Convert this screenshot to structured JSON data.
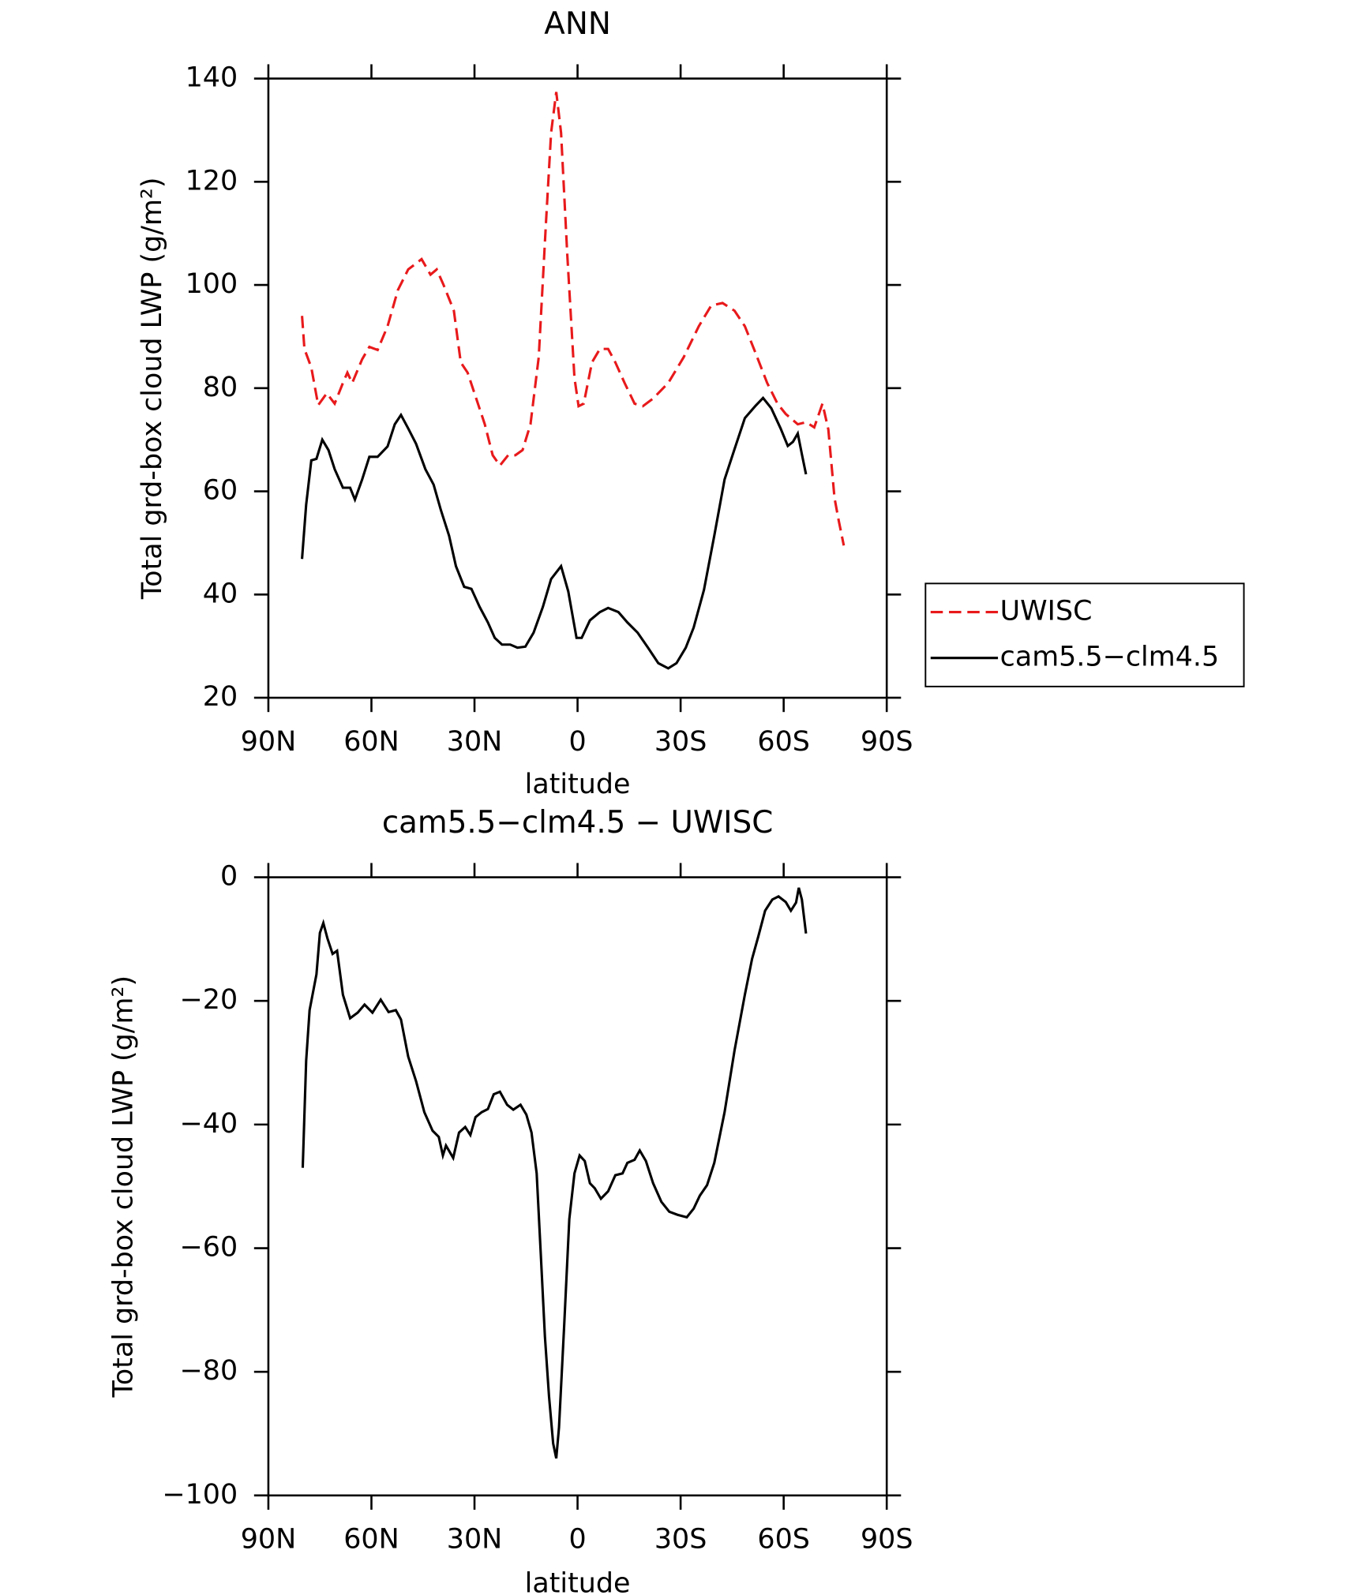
{
  "chart_data": [
    {
      "type": "line",
      "title": "ANN",
      "xlabel": "latitude",
      "ylabel": "Total grd-box cloud LWP (g/m²)",
      "xlim": [
        90,
        -90
      ],
      "xticks": [
        {
          "value": 90,
          "label": "90N"
        },
        {
          "value": 60,
          "label": "60N"
        },
        {
          "value": 30,
          "label": "30N"
        },
        0,
        {
          "value": -30,
          "label": "30S"
        },
        {
          "value": -60,
          "label": "60S"
        },
        {
          "value": -90,
          "label": "90S"
        }
      ],
      "ylim": [
        20,
        140
      ],
      "yticks": [
        20,
        40,
        60,
        80,
        100,
        120,
        140
      ],
      "legend": "outside-right",
      "series": [
        {
          "name": "UWISC",
          "color": "#e8191b",
          "dash": true,
          "x": [
            80.2,
            79.5,
            77.5,
            75.5,
            73,
            70.7,
            68.3,
            67,
            65.6,
            62.7,
            60.6,
            58.2,
            55.3,
            52.3,
            49.3,
            45.4,
            42.8,
            41,
            39,
            36,
            34,
            32,
            30,
            27,
            24.7,
            22.6,
            20.2,
            18.1,
            16,
            13.7,
            11.3,
            9.2,
            7.7,
            6.2,
            4.8,
            3,
            0.9,
            -0.3,
            -1.8,
            -4.2,
            -6.5,
            -8.9,
            -11,
            -13.7,
            -16.6,
            -19,
            -22,
            -26.4,
            -30.9,
            -35.3,
            -38.9,
            -42.2,
            -45.7,
            -48.7,
            -51.7,
            -55.2,
            -58.2,
            -60.6,
            -64.1,
            -66.5,
            -68.9,
            -71.3,
            -73,
            -74.8,
            -76,
            -77.5
          ],
          "values": [
            94,
            87.6,
            84,
            76.7,
            79,
            77,
            81,
            83,
            81,
            85.6,
            88,
            87.4,
            92,
            99,
            103,
            105,
            102,
            103,
            100,
            95,
            85,
            83,
            79,
            73,
            67,
            65,
            67,
            67,
            68,
            73,
            86,
            112,
            129.5,
            137.4,
            129.5,
            106,
            82,
            76.5,
            77,
            85,
            87.6,
            87.6,
            85,
            81,
            77,
            76.5,
            78,
            81,
            86,
            92,
            96,
            96.5,
            95,
            92,
            87,
            81,
            77,
            75,
            73,
            73.4,
            72.4,
            77,
            72,
            58.7,
            54.4,
            49.5
          ]
        },
        {
          "name": "cam5.5−clm4.5",
          "color": "#000000",
          "dash": false,
          "x": [
            80.2,
            79,
            77.5,
            76,
            74.3,
            72.5,
            70.7,
            68.3,
            66.2,
            64.8,
            62.7,
            60.6,
            58.2,
            55.3,
            53.2,
            51.4,
            49.3,
            47,
            44.3,
            41.9,
            39.8,
            37.4,
            35.4,
            33,
            30.9,
            28.5,
            26.1,
            24.1,
            22,
            19.6,
            17.5,
            15.2,
            12.8,
            10.1,
            7.7,
            4.8,
            2.7,
            0.3,
            -1.2,
            -3.6,
            -6.5,
            -8.9,
            -11.9,
            -14.5,
            -17.5,
            -20.5,
            -23.5,
            -26.4,
            -28.8,
            -31.5,
            -33.8,
            -36.8,
            -39.8,
            -42.8,
            -45.7,
            -48.7,
            -51.7,
            -54,
            -56.4,
            -59.1,
            -61.2,
            -62.7,
            -64.1,
            -65.3,
            -66.5
          ],
          "values": [
            46.9,
            57.4,
            66,
            66.3,
            70,
            68,
            64.3,
            60.7,
            60.7,
            58.4,
            62.3,
            66.7,
            66.7,
            68.7,
            73,
            74.8,
            72.2,
            69.2,
            64.3,
            61.3,
            56.4,
            51.4,
            45.5,
            41.5,
            41.1,
            37.6,
            34.6,
            31.6,
            30.3,
            30.3,
            29.7,
            29.9,
            32.6,
            37.6,
            43,
            45.5,
            40.6,
            31.6,
            31.6,
            35,
            36.6,
            37.4,
            36.6,
            34.6,
            32.6,
            29.7,
            26.7,
            25.7,
            26.7,
            29.7,
            33.6,
            40.9,
            51.4,
            62.3,
            68.2,
            74.2,
            76.5,
            78.1,
            76.1,
            72.2,
            68.8,
            69.6,
            71.2,
            67.2,
            63.3
          ]
        }
      ]
    },
    {
      "type": "line",
      "title": "cam5.5−clm4.5 − UWISC",
      "xlabel": "latitude",
      "ylabel": "Total grd-box cloud LWP (g/m²)",
      "xlim": [
        90,
        -90
      ],
      "xticks": [
        {
          "value": 90,
          "label": "90N"
        },
        {
          "value": 60,
          "label": "60N"
        },
        {
          "value": 30,
          "label": "30N"
        },
        0,
        {
          "value": -30,
          "label": "30S"
        },
        {
          "value": -60,
          "label": "60S"
        },
        {
          "value": -90,
          "label": "90S"
        }
      ],
      "ylim": [
        -100,
        0
      ],
      "yticks": [
        {
          "value": -100,
          "label": "−100"
        },
        {
          "value": -80,
          "label": "−80"
        },
        {
          "value": -60,
          "label": "−60"
        },
        {
          "value": -40,
          "label": "−40"
        },
        {
          "value": -20,
          "label": "−20"
        },
        0
      ],
      "color": "#000000",
      "x": [
        80,
        79,
        78,
        76,
        75,
        74,
        72.8,
        71.3,
        70,
        68.3,
        66.2,
        64,
        62,
        59.7,
        57.3,
        55,
        52.9,
        51.4,
        49.3,
        47,
        44.6,
        42.2,
        40.4,
        39.2,
        38.3,
        36.2,
        34.5,
        32.7,
        31.2,
        29.7,
        27.9,
        26.1,
        24.4,
        22.6,
        20.5,
        18.7,
        16.6,
        14.9,
        13.4,
        11.9,
        10.7,
        9.5,
        8.3,
        7.1,
        6.2,
        5.4,
        3.9,
        2.4,
        0.9,
        -0.6,
        -2.1,
        -3.6,
        -5,
        -6.8,
        -8.9,
        -11,
        -13.1,
        -14.5,
        -16.6,
        -18.1,
        -19.9,
        -22,
        -24.4,
        -26.7,
        -29.1,
        -31.8,
        -33.8,
        -35.6,
        -37.7,
        -39.8,
        -42.8,
        -45.7,
        -48.7,
        -50.8,
        -52.6,
        -54.6,
        -56.7,
        -58.5,
        -60.6,
        -62.1,
        -63.6,
        -64.4,
        -65.3,
        -66.5
      ],
      "values": [
        -47,
        -29.7,
        -21.5,
        -15.7,
        -9,
        -7.4,
        -9.9,
        -12.4,
        -11.9,
        -19,
        -22.8,
        -21.9,
        -20.6,
        -21.9,
        -19.8,
        -21.8,
        -21.5,
        -23,
        -29,
        -33,
        -38,
        -41,
        -42,
        -45,
        -43.4,
        -45.4,
        -41.3,
        -40.4,
        -41.7,
        -38.8,
        -38,
        -37.5,
        -35.1,
        -34.7,
        -36.8,
        -37.6,
        -36.8,
        -38.4,
        -41.3,
        -47.9,
        -61,
        -74.3,
        -84,
        -91.6,
        -94,
        -89,
        -72.6,
        -55.3,
        -47.9,
        -45,
        -45.9,
        -49.5,
        -50.3,
        -52,
        -50.8,
        -48.2,
        -47.9,
        -46.2,
        -45.7,
        -44.2,
        -45.9,
        -49.5,
        -52.5,
        -54.1,
        -54.6,
        -55,
        -53.6,
        -51.5,
        -49.8,
        -46.2,
        -38,
        -28,
        -19,
        -13.2,
        -9.6,
        -5.4,
        -3.6,
        -3.1,
        -4,
        -5.4,
        -4.1,
        -1.7,
        -3.6,
        -9.1
      ]
    }
  ]
}
